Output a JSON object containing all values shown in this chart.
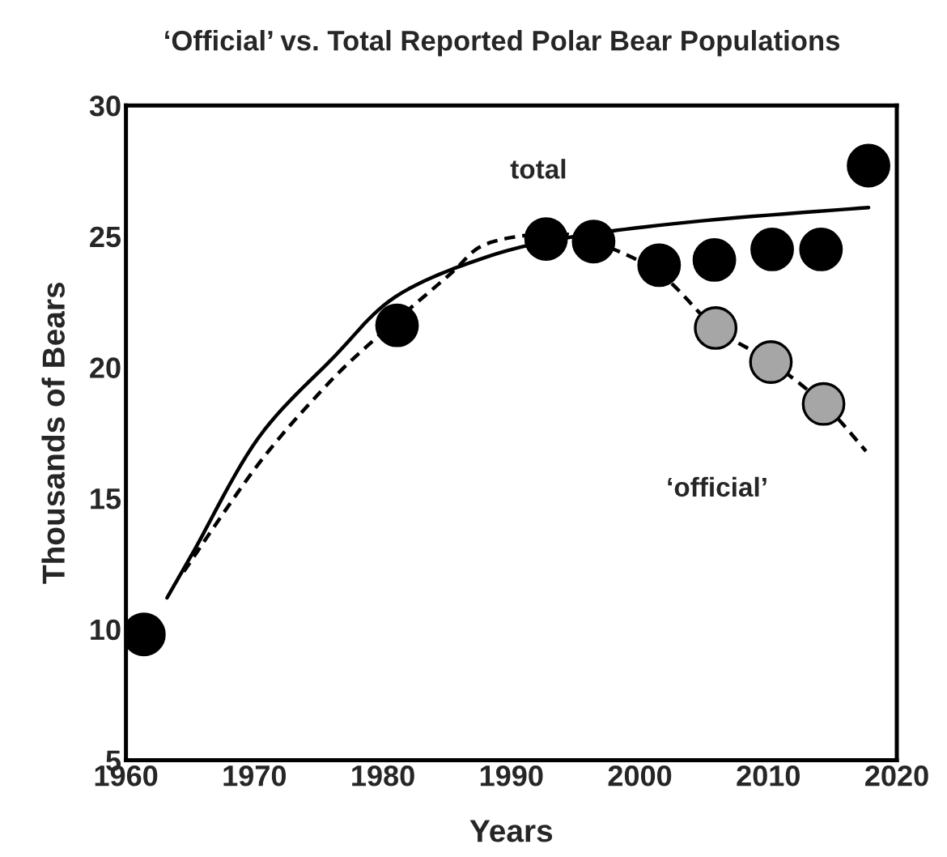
{
  "chart_data": {
    "type": "scatter",
    "title": "‘Official’ vs. Total Reported Polar Bear Populations",
    "xlabel": "Years",
    "ylabel": "Thousands of Bears",
    "xlim": [
      1960,
      2020
    ],
    "xticks": [
      1960,
      1970,
      1980,
      1990,
      2000,
      2010,
      2020
    ],
    "ylim": [
      5,
      30
    ],
    "yticks": [
      5,
      10,
      15,
      20,
      25,
      30
    ],
    "grid": false,
    "legend": false,
    "series": [
      {
        "type": "line",
        "marker": "none",
        "line_style": "solid",
        "color": "#000000",
        "x": [
          1963.2,
          1965.3,
          1970.3,
          1976.2,
          1981,
          1988,
          1995,
          2005,
          2017.8
        ],
        "values": [
          11.2,
          13.0,
          17.3,
          20.4,
          22.7,
          24.2,
          25.0,
          25.6,
          26.1
        ]
      },
      {
        "type": "line",
        "marker": "none",
        "line_style": "dashed",
        "color": "#000000",
        "x": [
          1964.5,
          1970.3,
          1975.4,
          1979.2,
          1985.1,
          1988,
          1993,
          1996.4,
          2001.5,
          2005.9,
          2010.2,
          2014.3,
          2017.6
        ],
        "values": [
          12.2,
          16.3,
          19.2,
          21.0,
          23.5,
          24.7,
          25.1,
          24.8,
          23.6,
          21.5,
          20.2,
          18.6,
          16.8
        ]
      },
      {
        "marker": "circle",
        "name": "total",
        "color": "#000000",
        "x": [
          1961.4,
          1981.1,
          1992.7,
          1996.4,
          2001.5,
          2005.8,
          2010.3,
          2014.1,
          2017.8
        ],
        "values": [
          9.8,
          21.6,
          24.9,
          24.8,
          23.9,
          24.1,
          24.5,
          24.5,
          27.7
        ]
      },
      {
        "marker": "circle",
        "name": "‘official’",
        "color": "#a6a6a6",
        "x": [
          2005.9,
          2010.2,
          2014.3
        ],
        "values": [
          21.5,
          20.2,
          18.6
        ]
      }
    ]
  }
}
